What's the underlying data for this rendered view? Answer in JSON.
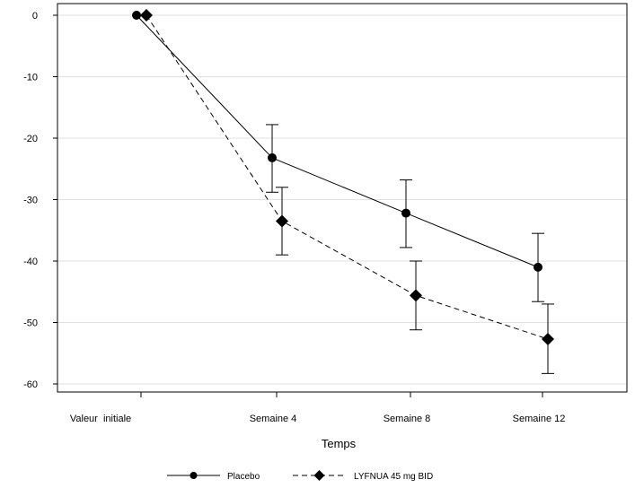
{
  "chart_data": {
    "type": "line",
    "title": "",
    "xlabel": "Temps",
    "ylabel": "",
    "categories": [
      "Valeur  initiale",
      "Semaine 4",
      "Semaine 8",
      "Semaine 12"
    ],
    "ylim": [
      -61,
      2
    ],
    "yticks": [
      0,
      -10,
      -20,
      -30,
      -40,
      -50,
      -60
    ],
    "grid": true,
    "legend_position": "bottom",
    "series": [
      {
        "name": "Placebo",
        "marker": "circle",
        "line_style": "solid",
        "color": "#000000",
        "values": [
          0,
          -23.2,
          -32.2,
          -41.0
        ],
        "error_low": [
          0,
          -28.8,
          -37.8,
          -46.6
        ],
        "error_high": [
          0,
          -17.8,
          -26.8,
          -35.5
        ]
      },
      {
        "name": "LYFNUA 45 mg BID",
        "marker": "diamond",
        "line_style": "dashed",
        "color": "#000000",
        "values": [
          0,
          -33.5,
          -45.6,
          -52.7
        ],
        "error_low": [
          0,
          -39.0,
          -51.2,
          -58.3
        ],
        "error_high": [
          0,
          -28.0,
          -40.0,
          -47.0
        ]
      }
    ]
  }
}
